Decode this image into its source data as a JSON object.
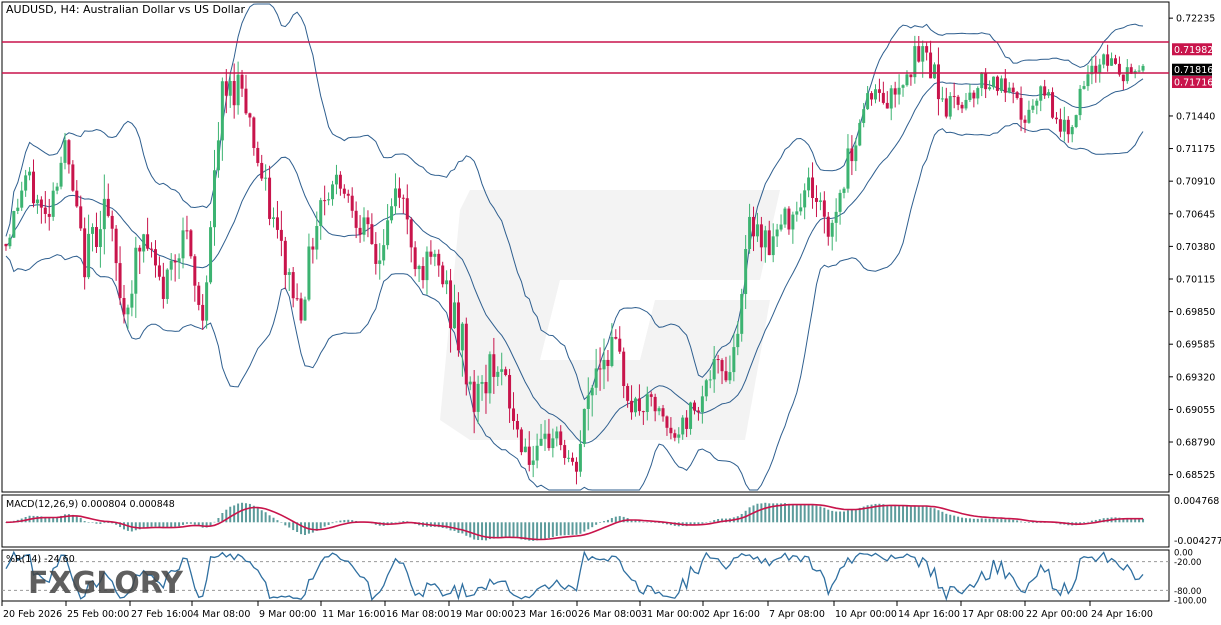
{
  "header": {
    "title": "AUDUSD, H4:  Australian Dollar vs US Dollar"
  },
  "watermark": {
    "brand": "FXGLORY"
  },
  "colors": {
    "bull": "#3cb371",
    "bear": "#c8144b",
    "band": "#2f5f8f",
    "level_line": "#c8144b",
    "macd_hist": "#5b9b9b",
    "macd_signal": "#c8144b",
    "wpr": "#2f6fa0"
  },
  "price_axis": {
    "ticks": [
      "0.72235",
      "0.71982",
      "0.71816",
      "0.71716",
      "0.71440",
      "0.71175",
      "0.70910",
      "0.70645",
      "0.70380",
      "0.70115",
      "0.69850",
      "0.69585",
      "0.69320",
      "0.69055",
      "0.68790",
      "0.68525"
    ]
  },
  "date_axis": {
    "labels": [
      "20 Feb 2026",
      "25 Feb 00:00",
      "27 Feb 16:00",
      "4 Mar 08:00",
      "9 Mar 00:00",
      "11 Mar 16:00",
      "16 Mar 08:00",
      "19 Mar 00:00",
      "23 Mar 16:00",
      "26 Mar 08:00",
      "31 Mar 00:00",
      "2 Apr 16:00",
      "7 Apr 08:00",
      "10 Apr 00:00",
      "14 Apr 16:00",
      "17 Apr 08:00",
      "22 Apr 00:00",
      "24 Apr 16:00"
    ]
  },
  "macd": {
    "label": "MACD(12,26,9) 0.000804 0.000848",
    "top_value": "0.004768",
    "bottom_value": "-0.004277"
  },
  "wpr": {
    "label": "%R(14) -24.60",
    "levels": [
      "0.00",
      "-20.00",
      "-80.00",
      "-100.00"
    ]
  },
  "chart_data": {
    "type": "candlestick",
    "symbol": "AUDUSD",
    "timeframe": "H4",
    "title": "AUDUSD, H4:  Australian Dollar vs US Dollar",
    "ylim": [
      0.684,
      0.7235
    ],
    "horizontal_levels": [
      0.71982,
      0.71716
    ],
    "current_price": 0.71816,
    "anchors": [
      [
        0.704,
        0.7075,
        0.7035
      ],
      [
        0.7095,
        0.712,
        0.708
      ],
      [
        0.706,
        0.709,
        0.7035
      ],
      [
        0.712,
        0.7145,
        0.711
      ],
      [
        0.7025,
        0.705,
        0.6995
      ],
      [
        0.7075,
        0.711,
        0.703
      ],
      [
        0.6985,
        0.702,
        0.6965
      ],
      [
        0.7045,
        0.708,
        0.6985
      ],
      [
        0.7,
        0.704,
        0.6995
      ],
      [
        0.7055,
        0.708,
        0.7005
      ],
      [
        0.6975,
        0.7,
        0.6965
      ],
      [
        0.7155,
        0.717,
        0.709
      ],
      [
        0.7175,
        0.7205,
        0.716
      ],
      [
        0.7095,
        0.7125,
        0.708
      ],
      [
        0.7035,
        0.708,
        0.701
      ],
      [
        0.6985,
        0.702,
        0.697
      ],
      [
        0.7075,
        0.71,
        0.7045
      ],
      [
        0.7095,
        0.7125,
        0.7085
      ],
      [
        0.706,
        0.709,
        0.7045
      ],
      [
        0.7025,
        0.7055,
        0.7
      ],
      [
        0.709,
        0.711,
        0.706
      ],
      [
        0.702,
        0.7045,
        0.7
      ],
      [
        0.7025,
        0.705,
        0.7005
      ],
      [
        0.697,
        0.706,
        0.696
      ],
      [
        0.691,
        0.6975,
        0.689
      ],
      [
        0.695,
        0.699,
        0.6935
      ],
      [
        0.689,
        0.6925,
        0.6875
      ],
      [
        0.686,
        0.689,
        0.684
      ],
      [
        0.689,
        0.6915,
        0.687
      ],
      [
        0.685,
        0.688,
        0.6835
      ],
      [
        0.694,
        0.6965,
        0.687
      ],
      [
        0.696,
        0.698,
        0.694
      ],
      [
        0.6905,
        0.693,
        0.688
      ],
      [
        0.691,
        0.6925,
        0.6895
      ],
      [
        0.688,
        0.6905,
        0.687
      ],
      [
        0.6905,
        0.694,
        0.6895
      ],
      [
        0.6935,
        0.696,
        0.692
      ],
      [
        0.694,
        0.6975,
        0.692
      ],
      [
        0.706,
        0.709,
        0.7045
      ],
      [
        0.704,
        0.707,
        0.702
      ],
      [
        0.7065,
        0.709,
        0.7045
      ],
      [
        0.709,
        0.7105,
        0.706
      ],
      [
        0.705,
        0.708,
        0.701
      ],
      [
        0.711,
        0.7135,
        0.7085
      ],
      [
        0.7165,
        0.718,
        0.715
      ],
      [
        0.7155,
        0.718,
        0.7135
      ],
      [
        0.7185,
        0.7205,
        0.716
      ],
      [
        0.7195,
        0.7225,
        0.717
      ],
      [
        0.715,
        0.718,
        0.713
      ],
      [
        0.716,
        0.7175,
        0.7145
      ],
      [
        0.7175,
        0.719,
        0.7155
      ],
      [
        0.7165,
        0.718,
        0.715
      ],
      [
        0.714,
        0.7165,
        0.7125
      ],
      [
        0.7165,
        0.718,
        0.715
      ],
      [
        0.713,
        0.715,
        0.711
      ],
      [
        0.7165,
        0.7185,
        0.715
      ],
      [
        0.7195,
        0.7205,
        0.7175
      ],
      [
        0.7175,
        0.7195,
        0.716
      ],
      [
        0.7185,
        0.7195,
        0.7175
      ]
    ],
    "bollinger_width": 0.0075,
    "macd_range": [
      -0.004277,
      0.004768
    ],
    "wpr_range": [
      -100,
      0
    ]
  }
}
